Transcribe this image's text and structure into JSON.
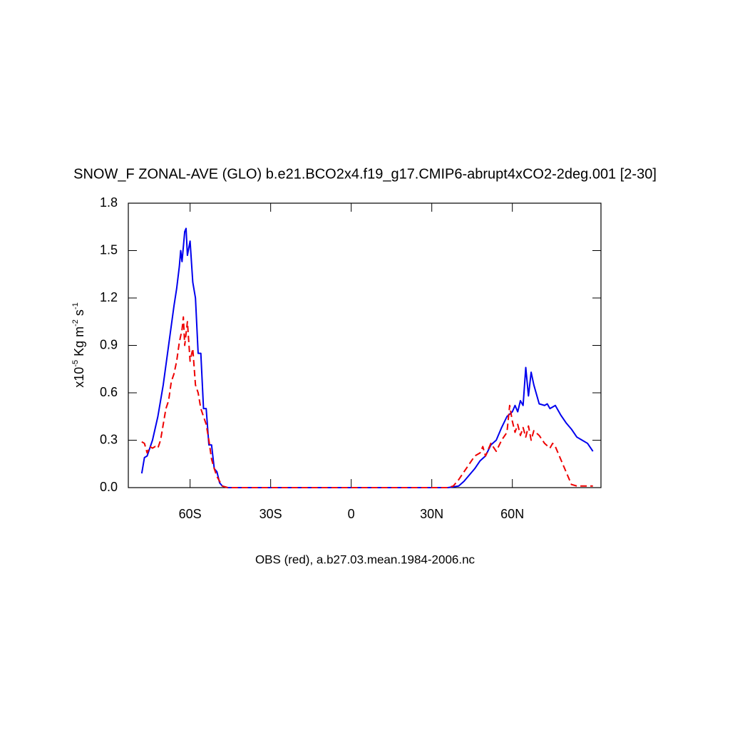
{
  "chart_data": {
    "type": "line",
    "title": "SNOW_F ZONAL-AVE (GLO) b.e21.BCO2x4.f19_g17.CMIP6-abrupt4xCO2-2deg.001 [2-30]",
    "xlabel": "OBS (red), a.b27.03.mean.1984-2006.nc",
    "ylabel_parts": [
      {
        "text": "x10"
      },
      {
        "text": "-5",
        "sup": true
      },
      {
        "text": " Kg m"
      },
      {
        "text": "-2",
        "sup": true
      },
      {
        "text": " s"
      },
      {
        "text": "-1",
        "sup": true
      }
    ],
    "xlim": [
      -83,
      93
    ],
    "ylim": [
      0,
      1.8
    ],
    "xticks": [
      {
        "value": -60,
        "label": "60S"
      },
      {
        "value": -30,
        "label": "30S"
      },
      0,
      {
        "value": 30,
        "label": "30N"
      },
      {
        "value": 60,
        "label": "60N"
      }
    ],
    "yticks": [
      {
        "value": 0,
        "label": "0.0"
      },
      0.3,
      0.6,
      0.9,
      1.2,
      1.5,
      1.8
    ],
    "series": [
      {
        "color": "#0000ee",
        "dash": false,
        "x": [
          -78,
          -77,
          -76,
          -75,
          -74,
          -72,
          -70,
          -68,
          -66,
          -65,
          -64,
          -63.5,
          -63,
          -62,
          -61.5,
          -61,
          -60,
          -59,
          -58,
          -57,
          -56,
          -55,
          -54,
          -53,
          -52,
          -51,
          -50,
          -49,
          -48,
          -46,
          -30,
          0,
          30,
          36,
          40,
          42,
          44,
          46,
          48,
          50,
          52,
          54,
          56,
          58,
          60,
          61,
          62,
          63,
          64,
          65,
          66,
          67,
          68,
          70,
          72,
          73,
          74,
          76,
          78,
          80,
          82,
          84,
          86,
          88,
          90
        ],
        "values": [
          0.09,
          0.19,
          0.2,
          0.25,
          0.3,
          0.45,
          0.65,
          0.9,
          1.15,
          1.26,
          1.4,
          1.5,
          1.43,
          1.62,
          1.64,
          1.47,
          1.56,
          1.3,
          1.2,
          0.85,
          0.85,
          0.5,
          0.5,
          0.27,
          0.27,
          0.12,
          0.1,
          0.03,
          0.01,
          0,
          0,
          0,
          0,
          0,
          0.01,
          0.04,
          0.08,
          0.12,
          0.17,
          0.2,
          0.27,
          0.3,
          0.38,
          0.45,
          0.48,
          0.52,
          0.48,
          0.55,
          0.52,
          0.76,
          0.58,
          0.73,
          0.65,
          0.53,
          0.52,
          0.53,
          0.5,
          0.52,
          0.46,
          0.41,
          0.37,
          0.32,
          0.3,
          0.28,
          0.23
        ]
      },
      {
        "color": "#ee0000",
        "dash": true,
        "x": [
          -78,
          -77,
          -76,
          -75,
          -74,
          -73,
          -72,
          -71,
          -70,
          -69,
          -68,
          -67,
          -66,
          -65,
          -64,
          -63,
          -62.5,
          -62,
          -61,
          -60,
          -59,
          -58,
          -57,
          -56,
          -55,
          -54,
          -53,
          -52,
          -51,
          -50,
          -49,
          -48,
          -46,
          -30,
          0,
          30,
          36,
          38,
          40,
          42,
          44,
          46,
          48,
          49,
          50,
          52,
          54,
          56,
          58,
          59,
          60,
          61,
          62,
          63,
          64,
          65,
          66,
          67,
          68,
          70,
          72,
          74,
          75,
          76,
          78,
          80,
          82,
          84,
          86,
          90
        ],
        "values": [
          0.29,
          0.28,
          0.22,
          0.26,
          0.25,
          0.26,
          0.25,
          0.3,
          0.4,
          0.5,
          0.55,
          0.67,
          0.72,
          0.8,
          0.92,
          1.0,
          1.08,
          0.9,
          1.05,
          0.8,
          0.88,
          0.65,
          0.6,
          0.5,
          0.45,
          0.4,
          0.3,
          0.18,
          0.12,
          0.07,
          0.04,
          0.01,
          0,
          0,
          0,
          0,
          0,
          0.01,
          0.05,
          0.1,
          0.15,
          0.2,
          0.22,
          0.26,
          0.2,
          0.28,
          0.23,
          0.3,
          0.35,
          0.52,
          0.42,
          0.35,
          0.4,
          0.33,
          0.38,
          0.32,
          0.39,
          0.3,
          0.36,
          0.33,
          0.28,
          0.25,
          0.28,
          0.26,
          0.18,
          0.1,
          0.02,
          0.01,
          0.01,
          0.01
        ]
      }
    ]
  }
}
